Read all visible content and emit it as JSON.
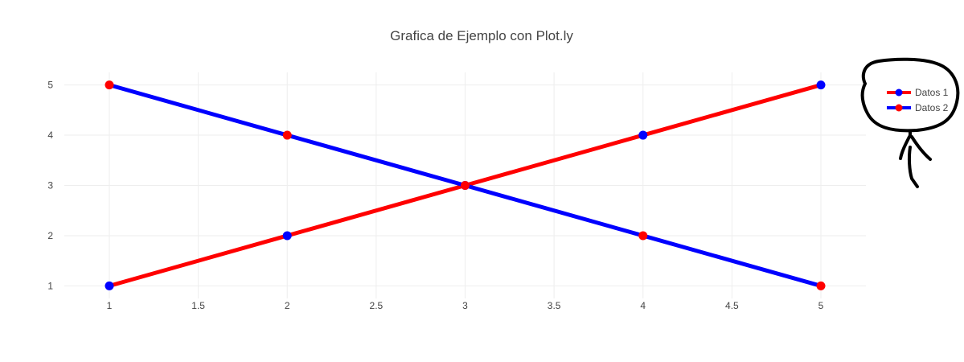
{
  "chart_data": {
    "type": "line",
    "title": "Grafica de Ejemplo con Plot.ly",
    "xlabel": "",
    "ylabel": "",
    "xlim": [
      1,
      5
    ],
    "ylim": [
      0.75,
      5.25
    ],
    "xticks": [
      "1",
      "1.5",
      "2",
      "2.5",
      "3",
      "3.5",
      "4",
      "4.5",
      "5"
    ],
    "yticks": [
      "1",
      "2",
      "3",
      "4",
      "5"
    ],
    "grid": true,
    "legend_position": "right",
    "series": [
      {
        "name": "Datos 1",
        "x": [
          1,
          2,
          3,
          4,
          5
        ],
        "y": [
          1,
          2,
          3,
          4,
          5
        ],
        "line_color": "#ff0000",
        "marker_color": "#0000ff"
      },
      {
        "name": "Datos 2",
        "x": [
          1,
          2,
          3,
          4,
          5
        ],
        "y": [
          5,
          4,
          3,
          2,
          1
        ],
        "line_color": "#0000ff",
        "marker_color": "#ff0000"
      }
    ]
  },
  "colors": {
    "grid": "#eeeeee",
    "text": "#444444",
    "doodle": "#000000"
  }
}
